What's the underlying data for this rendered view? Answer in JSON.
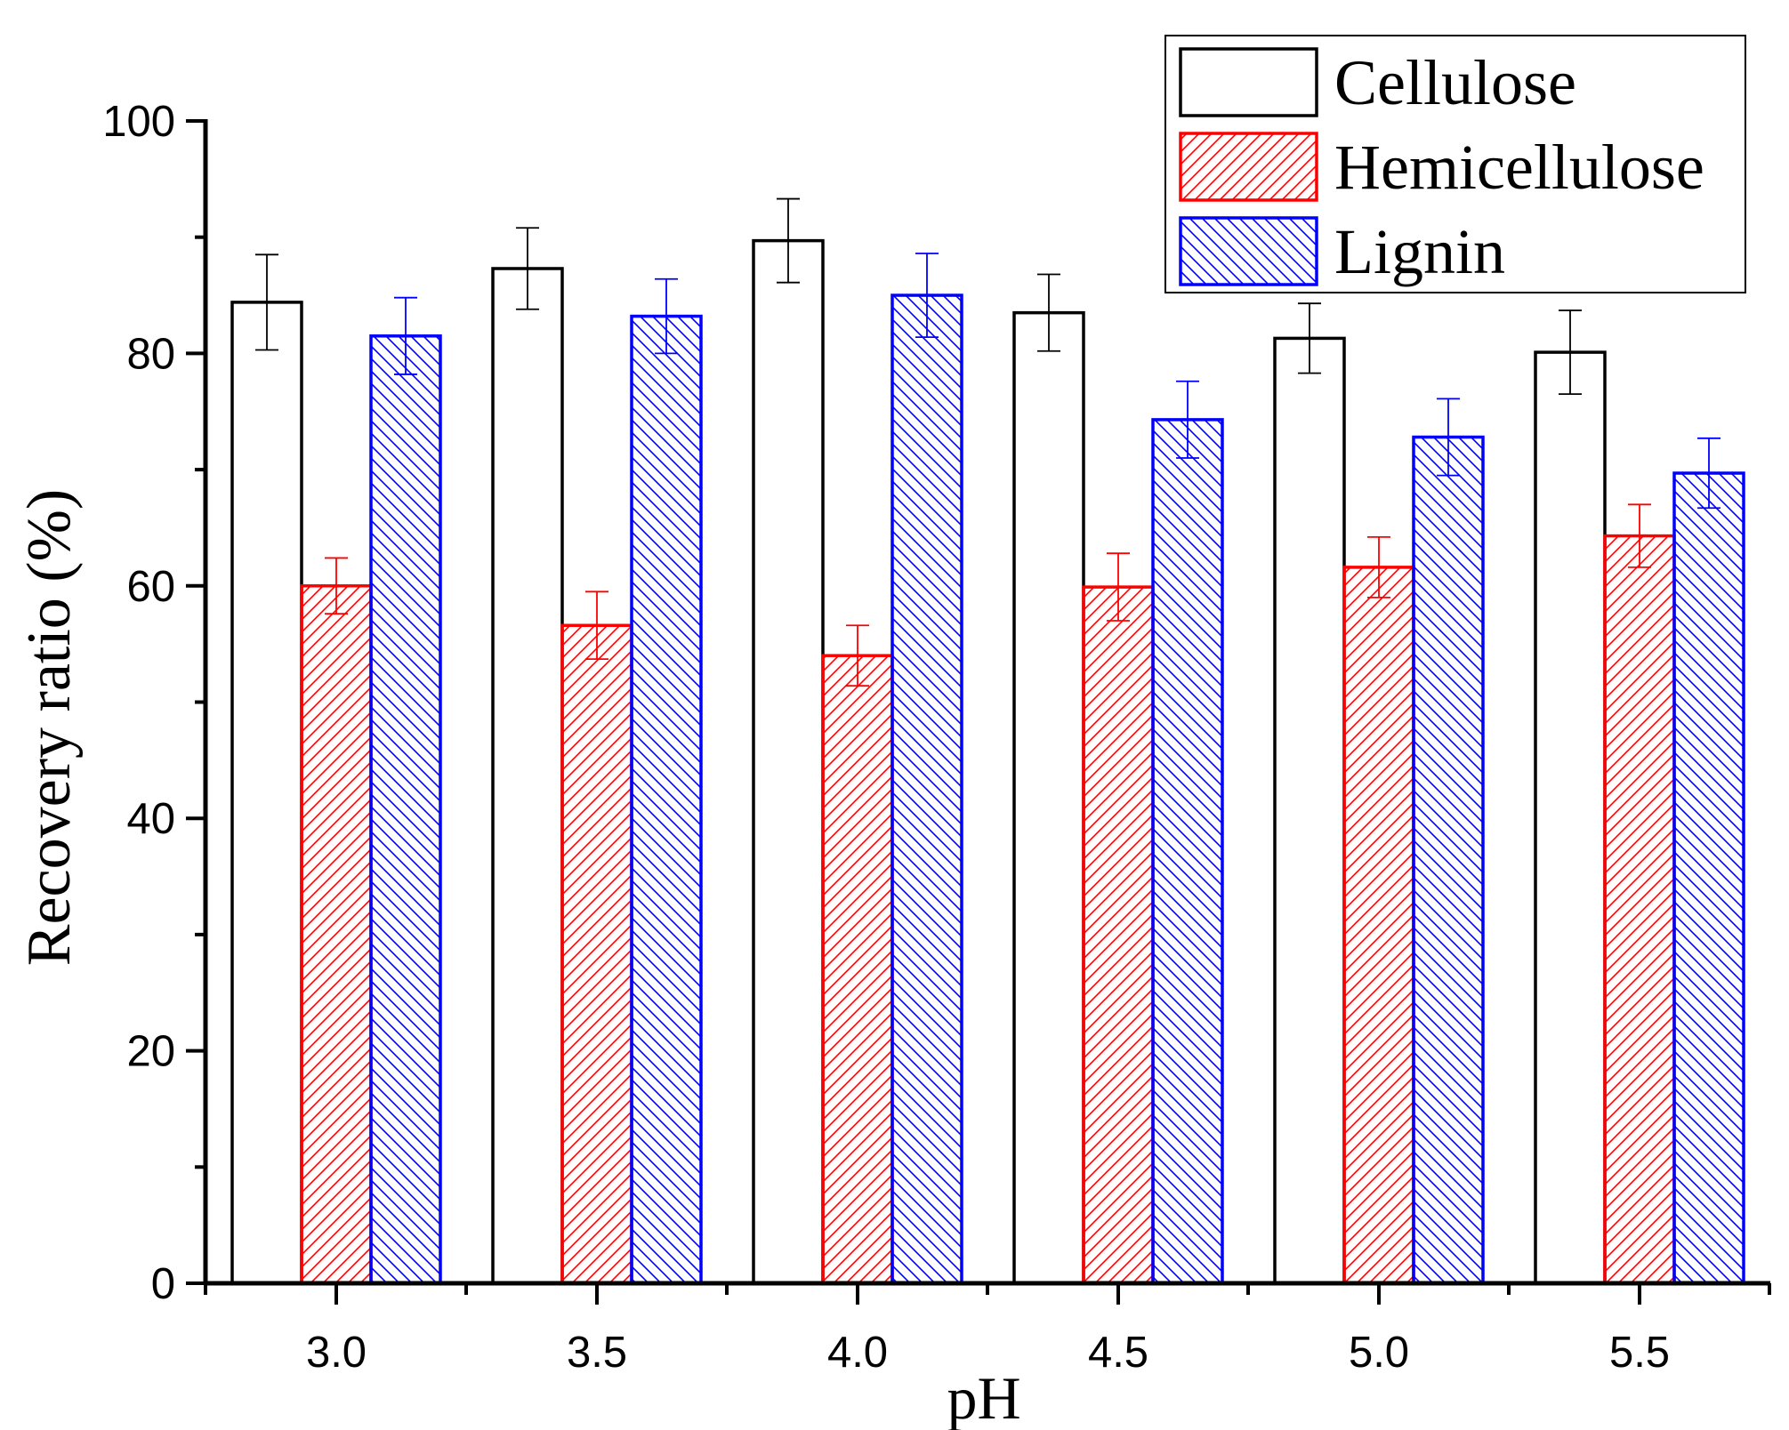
{
  "chart_data": {
    "type": "bar",
    "xlabel": "pH",
    "ylabel": "Recovery ratio (%)",
    "ylim": [
      0,
      100
    ],
    "yticks": [
      "0",
      "20",
      "40",
      "60",
      "80",
      "100"
    ],
    "categories": [
      "3.0",
      "3.5",
      "4.0",
      "4.5",
      "5.0",
      "5.5"
    ],
    "legend_position": "top-right",
    "series": [
      {
        "name": "Cellulose",
        "color": "#000000",
        "pattern": "none",
        "values": [
          84.4,
          87.3,
          89.7,
          83.5,
          81.3,
          80.1
        ],
        "errors": [
          4.1,
          3.5,
          3.6,
          3.3,
          3.0,
          3.6
        ]
      },
      {
        "name": "Hemicellulose",
        "color": "#ff0000",
        "pattern": "forward-hatch",
        "values": [
          60.0,
          56.6,
          54.0,
          59.9,
          61.6,
          64.3
        ],
        "errors": [
          2.4,
          2.9,
          2.6,
          2.9,
          2.6,
          2.7
        ]
      },
      {
        "name": "Lignin",
        "color": "#0000ff",
        "pattern": "back-hatch",
        "values": [
          81.5,
          83.2,
          85.0,
          74.3,
          72.8,
          69.7
        ],
        "errors": [
          3.3,
          3.2,
          3.6,
          3.3,
          3.3,
          3.0
        ]
      }
    ]
  }
}
